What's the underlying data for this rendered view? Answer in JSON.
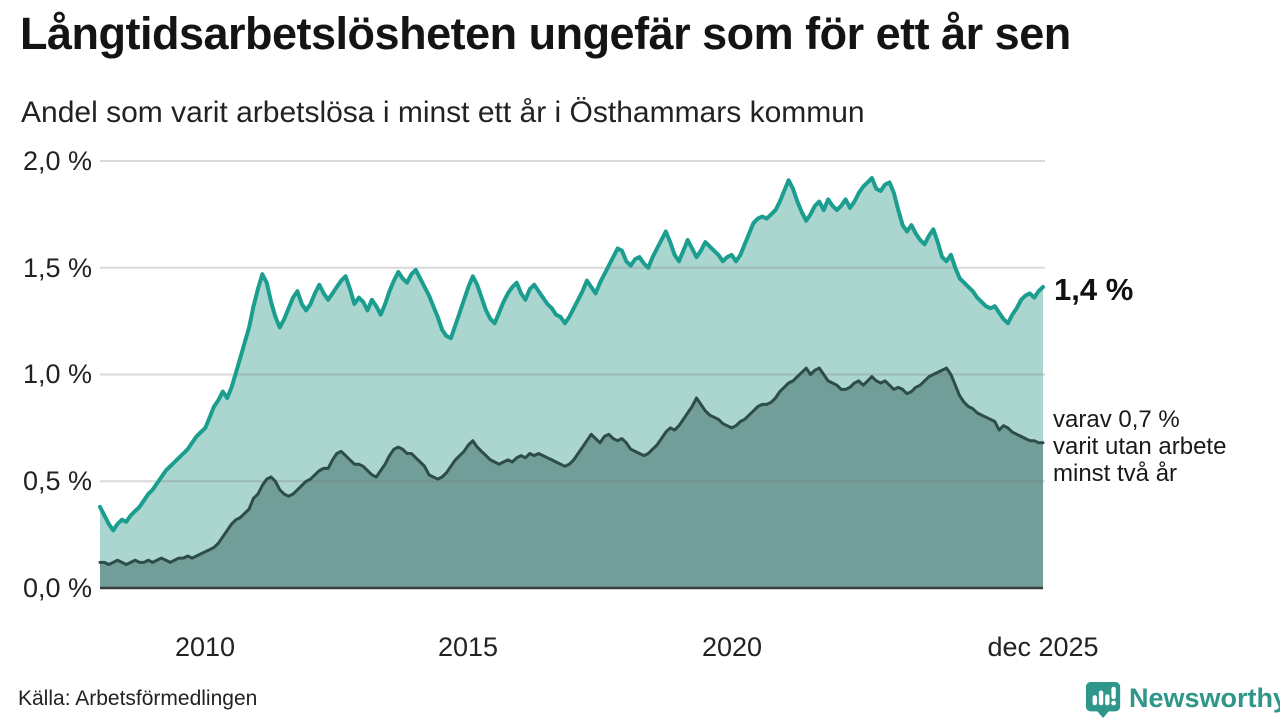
{
  "header": {
    "title": "Långtidsarbetslösheten ungefär som för ett år sen",
    "subtitle": "Andel som varit arbetslösa i minst ett år i Östhammars kommun"
  },
  "chart_data": {
    "type": "area",
    "title": "Andel som varit arbetslösa i minst ett år i Östhammars kommun",
    "x_start": "jan 2008",
    "x_end": "dec 2025",
    "x_tick_labels": [
      "2010",
      "2015",
      "2020",
      "dec 2025"
    ],
    "y_tick_labels": [
      "2,0 %",
      "1,5 %",
      "1,0 %",
      "0,5 %",
      "0,0 %"
    ],
    "y_ticks": [
      2.0,
      1.5,
      1.0,
      0.5,
      0.0
    ],
    "ylim": [
      0,
      2.0
    ],
    "grid": true,
    "legend_position": "right-annotations",
    "frequency": "monthly",
    "series": [
      {
        "name": "Arbetslösa minst ett år",
        "end_value_label": "1,4 %",
        "line_color": "#1b9e8f",
        "fill_color": "#abd5cf",
        "values": [
          0.38,
          0.34,
          0.3,
          0.27,
          0.3,
          0.32,
          0.31,
          0.34,
          0.36,
          0.38,
          0.41,
          0.44,
          0.46,
          0.49,
          0.52,
          0.55,
          0.57,
          0.59,
          0.61,
          0.63,
          0.65,
          0.68,
          0.71,
          0.73,
          0.75,
          0.8,
          0.85,
          0.88,
          0.92,
          0.89,
          0.94,
          1.01,
          1.08,
          1.15,
          1.22,
          1.32,
          1.4,
          1.47,
          1.43,
          1.34,
          1.27,
          1.22,
          1.26,
          1.31,
          1.36,
          1.39,
          1.33,
          1.3,
          1.33,
          1.38,
          1.42,
          1.38,
          1.35,
          1.38,
          1.41,
          1.44,
          1.46,
          1.4,
          1.33,
          1.36,
          1.34,
          1.3,
          1.35,
          1.32,
          1.28,
          1.33,
          1.39,
          1.44,
          1.48,
          1.45,
          1.43,
          1.47,
          1.49,
          1.45,
          1.41,
          1.37,
          1.32,
          1.27,
          1.21,
          1.18,
          1.17,
          1.23,
          1.29,
          1.35,
          1.41,
          1.46,
          1.42,
          1.36,
          1.3,
          1.26,
          1.24,
          1.29,
          1.34,
          1.38,
          1.41,
          1.43,
          1.38,
          1.35,
          1.4,
          1.42,
          1.39,
          1.36,
          1.33,
          1.31,
          1.28,
          1.27,
          1.24,
          1.27,
          1.31,
          1.35,
          1.39,
          1.44,
          1.41,
          1.38,
          1.43,
          1.47,
          1.51,
          1.55,
          1.59,
          1.58,
          1.53,
          1.51,
          1.54,
          1.55,
          1.52,
          1.5,
          1.55,
          1.59,
          1.63,
          1.67,
          1.62,
          1.56,
          1.53,
          1.58,
          1.63,
          1.59,
          1.55,
          1.58,
          1.62,
          1.6,
          1.58,
          1.56,
          1.53,
          1.55,
          1.56,
          1.53,
          1.56,
          1.61,
          1.66,
          1.71,
          1.73,
          1.74,
          1.73,
          1.75,
          1.77,
          1.81,
          1.86,
          1.91,
          1.87,
          1.81,
          1.76,
          1.72,
          1.75,
          1.79,
          1.81,
          1.77,
          1.82,
          1.79,
          1.77,
          1.79,
          1.82,
          1.78,
          1.81,
          1.85,
          1.88,
          1.9,
          1.92,
          1.87,
          1.86,
          1.89,
          1.9,
          1.85,
          1.77,
          1.7,
          1.67,
          1.7,
          1.66,
          1.63,
          1.61,
          1.65,
          1.68,
          1.62,
          1.55,
          1.53,
          1.56,
          1.5,
          1.45,
          1.43,
          1.41,
          1.39,
          1.36,
          1.34,
          1.32,
          1.31,
          1.32,
          1.29,
          1.26,
          1.24,
          1.28,
          1.31,
          1.35,
          1.37,
          1.38,
          1.36,
          1.39,
          1.41
        ]
      },
      {
        "name": "Varav utan arbete minst två år",
        "end_value_label": "0,7 %",
        "line_color": "#2e4c49",
        "fill_color": "#719e99",
        "values": [
          0.12,
          0.12,
          0.11,
          0.12,
          0.13,
          0.12,
          0.11,
          0.12,
          0.13,
          0.12,
          0.12,
          0.13,
          0.12,
          0.13,
          0.14,
          0.13,
          0.12,
          0.13,
          0.14,
          0.14,
          0.15,
          0.14,
          0.15,
          0.16,
          0.17,
          0.18,
          0.19,
          0.21,
          0.24,
          0.27,
          0.3,
          0.32,
          0.33,
          0.35,
          0.37,
          0.42,
          0.44,
          0.48,
          0.51,
          0.52,
          0.5,
          0.46,
          0.44,
          0.43,
          0.44,
          0.46,
          0.48,
          0.5,
          0.51,
          0.53,
          0.55,
          0.56,
          0.56,
          0.6,
          0.63,
          0.64,
          0.62,
          0.6,
          0.58,
          0.58,
          0.57,
          0.55,
          0.53,
          0.52,
          0.55,
          0.58,
          0.62,
          0.65,
          0.66,
          0.65,
          0.63,
          0.63,
          0.61,
          0.59,
          0.57,
          0.53,
          0.52,
          0.51,
          0.52,
          0.54,
          0.57,
          0.6,
          0.62,
          0.64,
          0.67,
          0.69,
          0.66,
          0.64,
          0.62,
          0.6,
          0.59,
          0.58,
          0.59,
          0.6,
          0.59,
          0.61,
          0.62,
          0.61,
          0.63,
          0.62,
          0.63,
          0.62,
          0.61,
          0.6,
          0.59,
          0.58,
          0.57,
          0.58,
          0.6,
          0.63,
          0.66,
          0.69,
          0.72,
          0.7,
          0.68,
          0.71,
          0.72,
          0.7,
          0.69,
          0.7,
          0.68,
          0.65,
          0.64,
          0.63,
          0.62,
          0.63,
          0.65,
          0.67,
          0.7,
          0.73,
          0.75,
          0.74,
          0.76,
          0.79,
          0.82,
          0.85,
          0.89,
          0.86,
          0.83,
          0.81,
          0.8,
          0.79,
          0.77,
          0.76,
          0.75,
          0.76,
          0.78,
          0.79,
          0.81,
          0.83,
          0.85,
          0.86,
          0.86,
          0.87,
          0.89,
          0.92,
          0.94,
          0.96,
          0.97,
          0.99,
          1.01,
          1.03,
          1.0,
          1.02,
          1.03,
          1.0,
          0.97,
          0.96,
          0.95,
          0.93,
          0.93,
          0.94,
          0.96,
          0.97,
          0.95,
          0.97,
          0.99,
          0.97,
          0.96,
          0.97,
          0.95,
          0.93,
          0.94,
          0.93,
          0.91,
          0.92,
          0.94,
          0.95,
          0.97,
          0.99,
          1.0,
          1.01,
          1.02,
          1.03,
          1.0,
          0.95,
          0.9,
          0.87,
          0.85,
          0.84,
          0.82,
          0.81,
          0.8,
          0.79,
          0.78,
          0.74,
          0.76,
          0.75,
          0.73,
          0.72,
          0.71,
          0.7,
          0.69,
          0.69,
          0.68,
          0.68
        ]
      }
    ]
  },
  "annotations": {
    "latest_value": "1,4 %",
    "sub_lines": [
      "varav 0,7 %",
      "varit utan arbete",
      "minst två år"
    ]
  },
  "footer": {
    "source": "Källa: Arbetsförmedlingen",
    "brand": "Newsworthy"
  },
  "colors": {
    "series1_line": "#1b9e8f",
    "series1_fill": "#abd5cf",
    "series2_line": "#2e4c49",
    "series2_fill": "#719e99",
    "gridline": "#d9d9d9",
    "baseline": "#3a3a3a",
    "brand_teal": "#2f968a",
    "text": "#1a1a1a"
  }
}
